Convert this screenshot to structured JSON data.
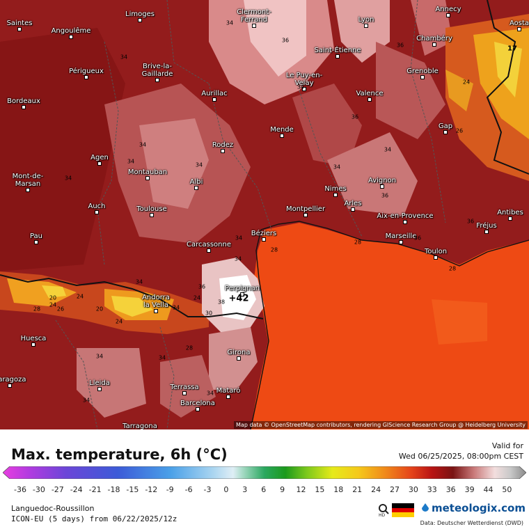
{
  "map": {
    "attribution": "Map data © OpenStreetMap contributors, rendering GIScience Research Group @ Heidelberg University",
    "marker_value": "42",
    "cities": [
      {
        "name": "Saintes"
      },
      {
        "name": "Limoges"
      },
      {
        "name": "Clermont-Ferrand"
      },
      {
        "name": "Lyon"
      },
      {
        "name": "Annecy"
      },
      {
        "name": "Aosta"
      },
      {
        "name": "Angoulême"
      },
      {
        "name": "Saint-Étienne"
      },
      {
        "name": "Chambéry"
      },
      {
        "name": "Périgueux"
      },
      {
        "name": "Brive-la-Gaillarde"
      },
      {
        "name": "Le Puy-en-Velay"
      },
      {
        "name": "Grenoble"
      },
      {
        "name": "Bordeaux"
      },
      {
        "name": "Aurillac"
      },
      {
        "name": "Valence"
      },
      {
        "name": "Mende"
      },
      {
        "name": "Gap"
      },
      {
        "name": "Rodez"
      },
      {
        "name": "Agen"
      },
      {
        "name": "Montauban"
      },
      {
        "name": "Albi"
      },
      {
        "name": "Mont-de-Marsan"
      },
      {
        "name": "Nimes"
      },
      {
        "name": "Avignon"
      },
      {
        "name": "Arles"
      },
      {
        "name": "Auch"
      },
      {
        "name": "Toulouse"
      },
      {
        "name": "Montpellier"
      },
      {
        "name": "Aix-en-Provence"
      },
      {
        "name": "Antibes"
      },
      {
        "name": "Fréjus"
      },
      {
        "name": "Pau"
      },
      {
        "name": "Béziers"
      },
      {
        "name": "Marseille"
      },
      {
        "name": "Carcassonne"
      },
      {
        "name": "Toulon"
      },
      {
        "name": "Perpignan"
      },
      {
        "name": "Andorra la Vella"
      },
      {
        "name": "Huesca"
      },
      {
        "name": "Girona"
      },
      {
        "name": "Zaragoza"
      },
      {
        "name": "Lleida"
      },
      {
        "name": "Terrassa"
      },
      {
        "name": "Mataró"
      },
      {
        "name": "Barcelona"
      },
      {
        "name": "Tarragona"
      }
    ],
    "contour_labels": [
      "34",
      "34",
      "36",
      "36",
      "34",
      "34",
      "34",
      "34",
      "34",
      "34",
      "36",
      "36",
      "34",
      "34",
      "24",
      "26",
      "34",
      "34",
      "34",
      "38",
      "28",
      "28",
      "36",
      "36",
      "36",
      "34",
      "34",
      "34",
      "20",
      "24",
      "26",
      "28",
      "20",
      "30",
      "24",
      "17",
      "28",
      "24",
      "24",
      "34",
      "28"
    ]
  },
  "legend": {
    "title": "Max. temperature, 6h (°C)",
    "valid_label": "Valid for",
    "valid_date": "Wed 06/25/2025, 08:00pm CEST",
    "ticks": [
      "-36",
      "-30",
      "-27",
      "-24",
      "-21",
      "-18",
      "-15",
      "-12",
      "-9",
      "-6",
      "-3",
      "0",
      "3",
      "6",
      "9",
      "12",
      "15",
      "18",
      "21",
      "24",
      "27",
      "30",
      "33",
      "36",
      "39",
      "44",
      "50"
    ],
    "region": "Languedoc-Roussillon",
    "model": "ICON-EU (5 days) from 06/22/2025/12z",
    "logo": "meteologix.com",
    "source": "Data: Deutscher Wetterdienst (DWD)",
    "hd_label": "HD"
  }
}
